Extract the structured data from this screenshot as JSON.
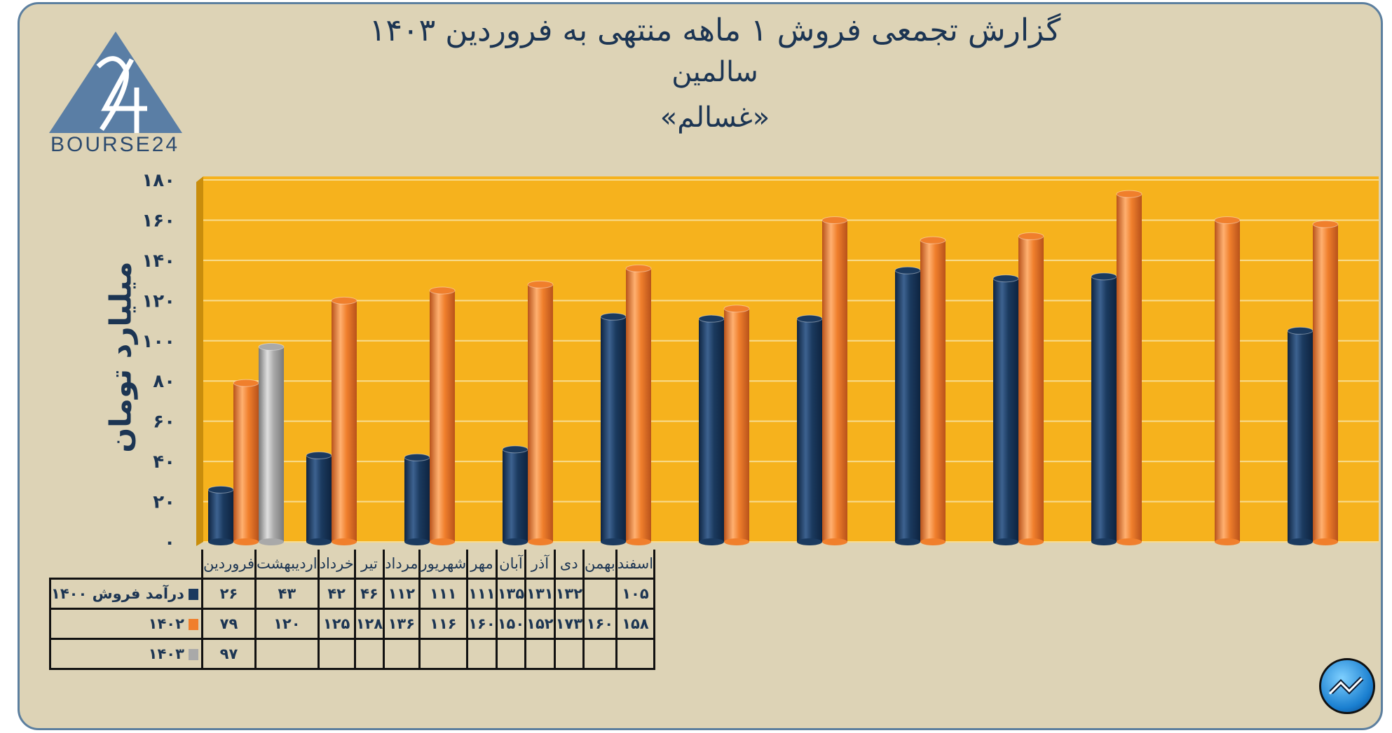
{
  "header": {
    "title": "گزارش تجمعی فروش ۱ ماهه منتهی به فروردین ۱۴۰۳",
    "company": "سالمین",
    "ticker": "«غسالم»"
  },
  "logo": {
    "text": "BOURSE24",
    "mark": "24"
  },
  "colors": {
    "background": "#ddd3b6",
    "plot": "#f6b21d",
    "s1400": "#1b3a5f",
    "s1402": "#f07f2c",
    "s1403": "#a9a9a9",
    "text": "#1c3553"
  },
  "chart_data": {
    "type": "bar",
    "title": "گزارش تجمعی فروش ۱ ماهه منتهی به فروردین ۱۴۰۳",
    "ylabel": "میلیارد تومان",
    "xlabel": "",
    "ylim": [
      0,
      180
    ],
    "yticks": [
      0,
      20,
      40,
      60,
      80,
      100,
      120,
      140,
      160,
      180
    ],
    "ytick_labels": [
      "۰",
      "۲۰",
      "۴۰",
      "۶۰",
      "۸۰",
      "۱۰۰",
      "۱۲۰",
      "۱۴۰",
      "۱۶۰",
      "۱۸۰"
    ],
    "grid": true,
    "legend": "table-left",
    "categories": [
      "فروردین",
      "اردیبهشت",
      "خرداد",
      "تیر",
      "مرداد",
      "شهریور",
      "مهر",
      "آبان",
      "آذر",
      "دی",
      "بهمن",
      "اسفند"
    ],
    "series": [
      {
        "name": "درآمد فروش ۱۴۰۰",
        "key": "s1400",
        "values": [
          26,
          43,
          42,
          46,
          112,
          111,
          111,
          135,
          131,
          132,
          null,
          105
        ]
      },
      {
        "name": "۱۴۰۲",
        "key": "s1402",
        "values": [
          79,
          120,
          125,
          128,
          136,
          116,
          160,
          150,
          152,
          173,
          160,
          158
        ]
      },
      {
        "name": "۱۴۰۳",
        "key": "s1403",
        "values": [
          97,
          null,
          null,
          null,
          null,
          null,
          null,
          null,
          null,
          null,
          null,
          null
        ]
      }
    ]
  }
}
